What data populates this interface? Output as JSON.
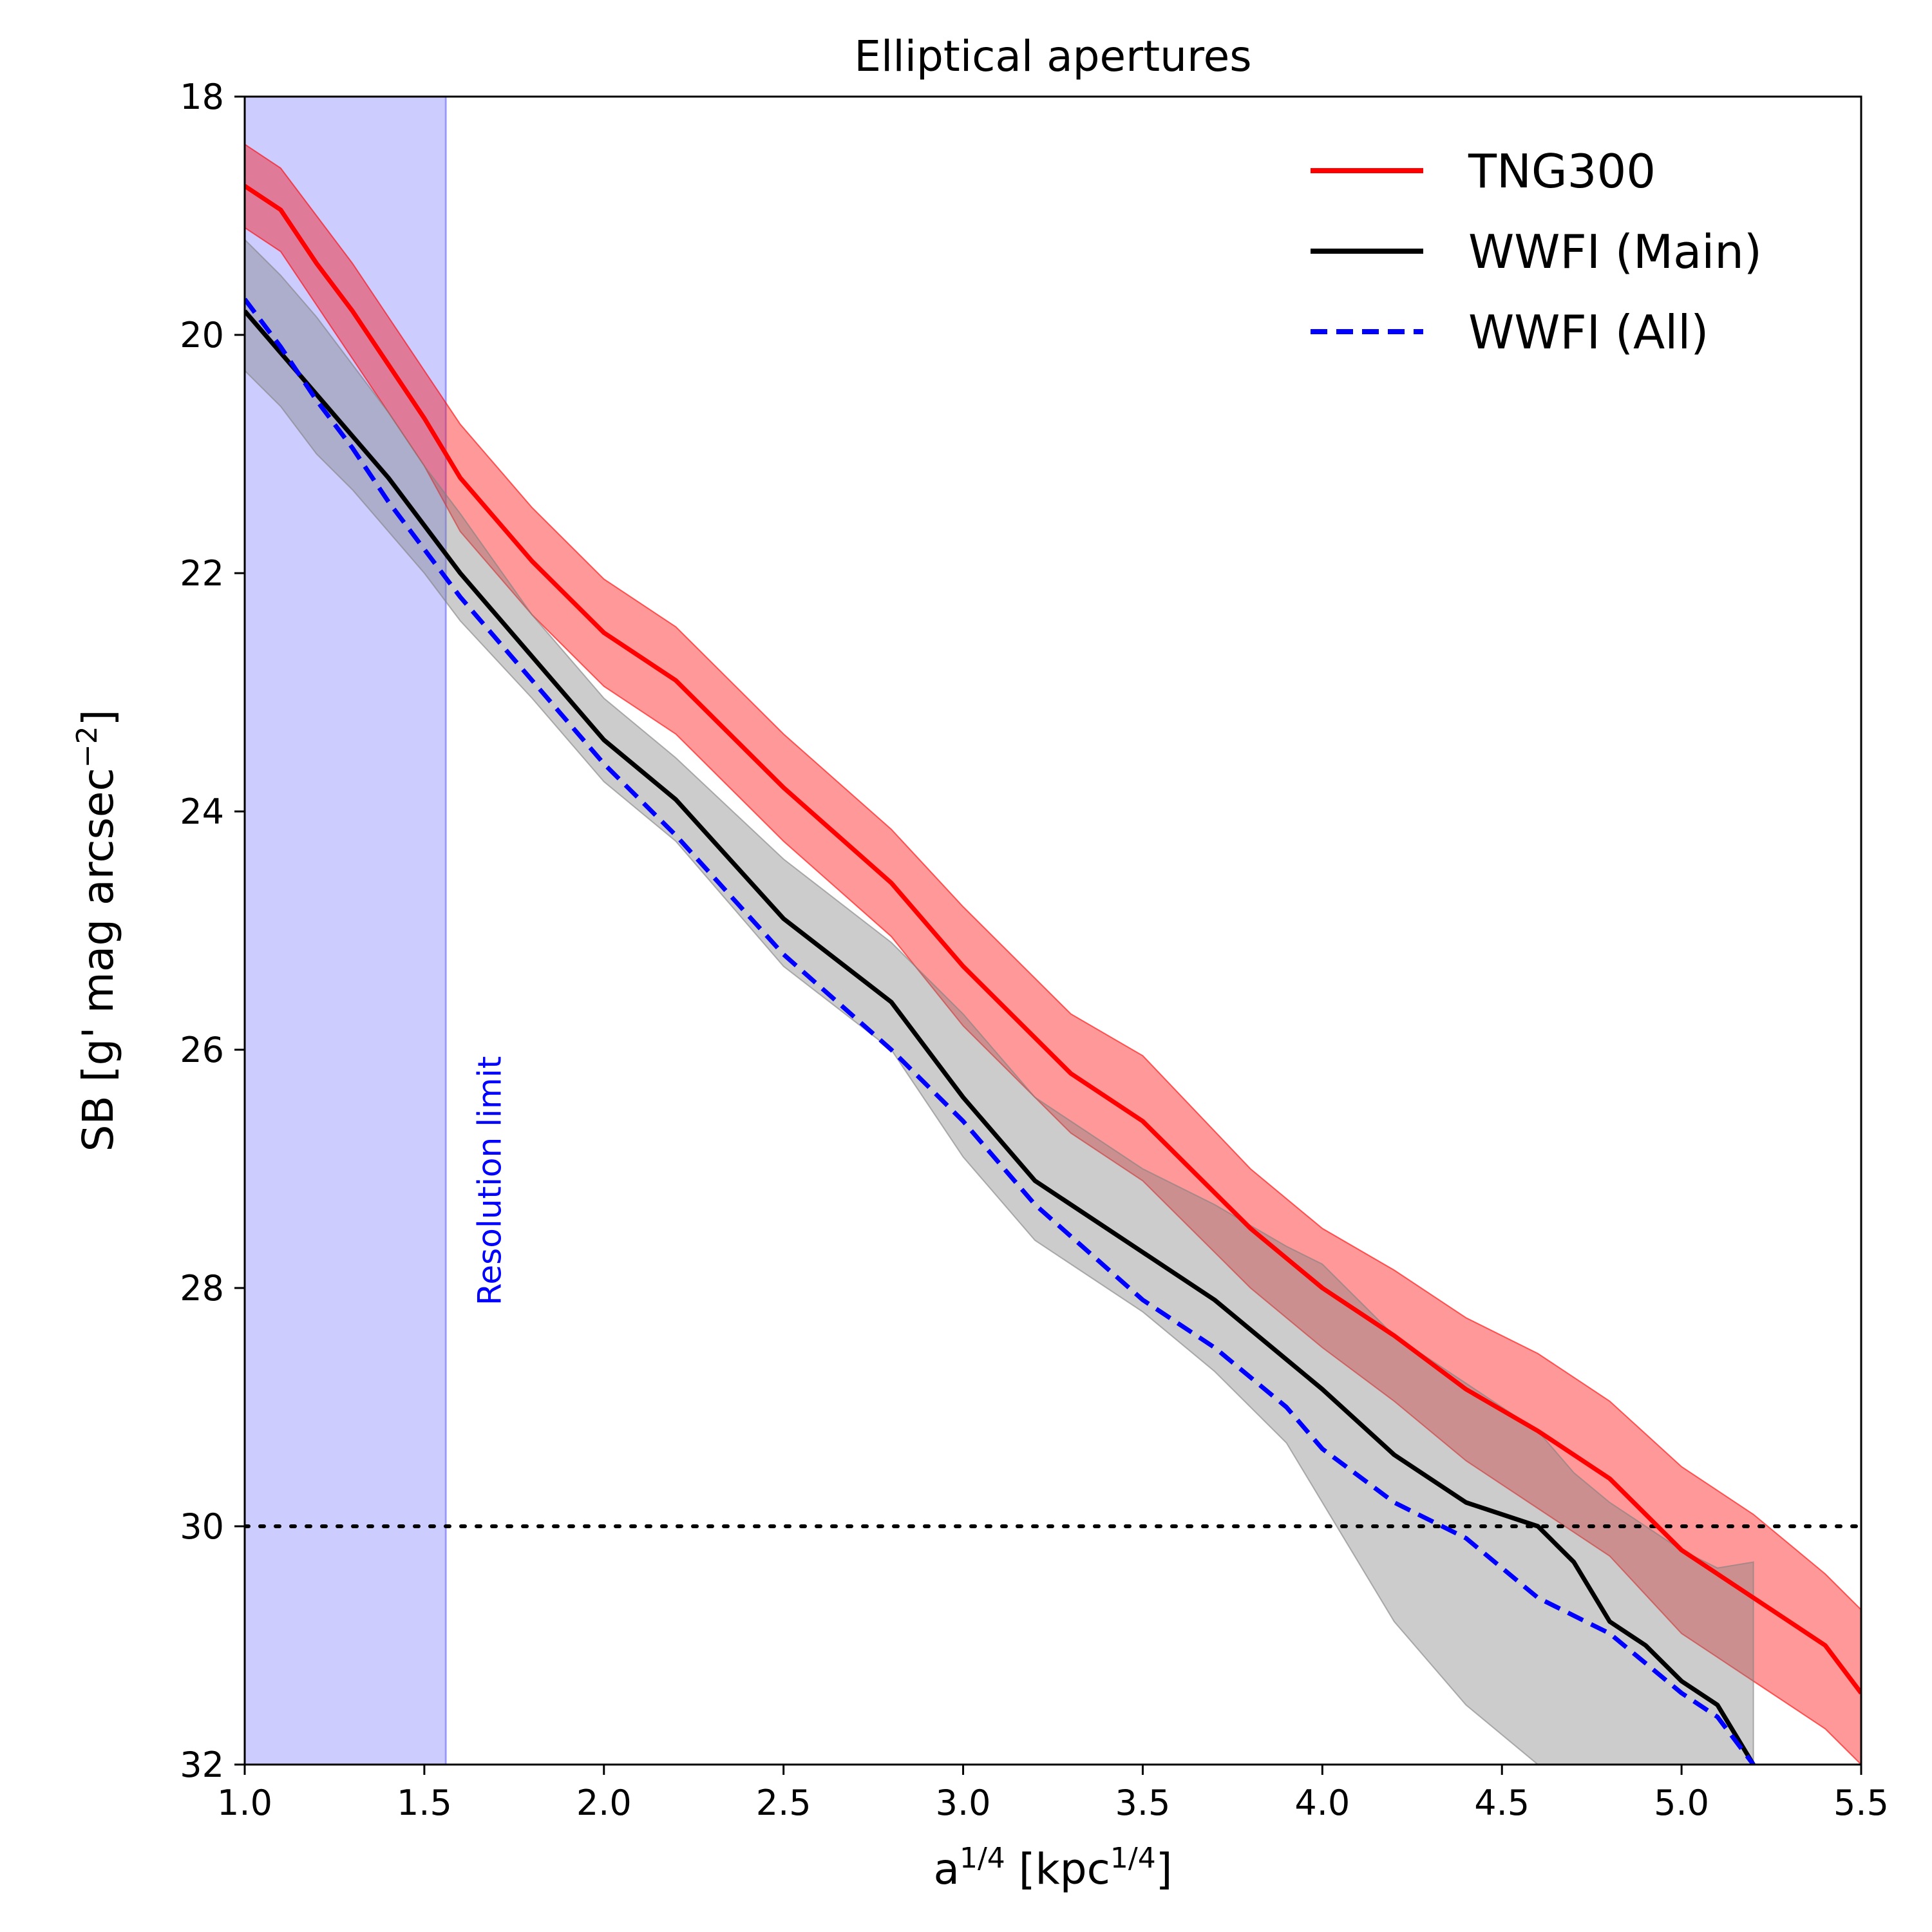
{
  "chart_data": {
    "type": "line",
    "title": "Elliptical apertures",
    "xlabel": "a<sup>1/4</sup> [kpc<sup>1/4</sup>]",
    "ylabel": "SB [g' mag arcsec<sup>−2</sup>]",
    "xlim": [
      1.0,
      5.5
    ],
    "ylim": [
      18,
      32
    ],
    "y_inverted": true,
    "grid": false,
    "legend_position": "top-right",
    "xticks": [
      "1.0",
      "1.5",
      "2.0",
      "2.5",
      "3.0",
      "3.5",
      "4.0",
      "4.5",
      "5.0",
      "5.5"
    ],
    "xtick_values": [
      1.0,
      1.5,
      2.0,
      2.5,
      3.0,
      3.5,
      4.0,
      4.5,
      5.0,
      5.5
    ],
    "yticks": [
      "18",
      "20",
      "22",
      "24",
      "26",
      "28",
      "30",
      "32"
    ],
    "ytick_values": [
      18,
      20,
      22,
      24,
      26,
      28,
      30,
      32
    ],
    "resolution_limit": {
      "label": "Resolution limit",
      "x_start": 1.0,
      "x_end": 1.56,
      "color": "#0000ff"
    },
    "reference_line": {
      "y": 30,
      "style": "dotted",
      "color": "#000000"
    },
    "series": [
      {
        "name": "TNG300",
        "color": "#ff0000",
        "style": "solid",
        "x": [
          1.0,
          1.1,
          1.2,
          1.3,
          1.4,
          1.5,
          1.6,
          1.8,
          2.0,
          2.2,
          2.5,
          2.8,
          3.0,
          3.3,
          3.5,
          3.8,
          4.0,
          4.2,
          4.4,
          4.6,
          4.8,
          5.0,
          5.2,
          5.4,
          5.5
        ],
        "y": [
          18.75,
          18.95,
          19.4,
          19.8,
          20.25,
          20.7,
          21.2,
          21.9,
          22.5,
          22.9,
          23.8,
          24.6,
          25.3,
          26.2,
          26.6,
          27.5,
          28.0,
          28.4,
          28.85,
          29.2,
          29.6,
          30.2,
          30.6,
          31.0,
          31.4
        ],
        "band_lower": [
          18.4,
          18.6,
          19.0,
          19.4,
          19.85,
          20.3,
          20.75,
          21.45,
          22.05,
          22.45,
          23.35,
          24.15,
          24.8,
          25.7,
          26.05,
          27.0,
          27.5,
          27.85,
          28.25,
          28.55,
          28.95,
          29.5,
          29.9,
          30.4,
          30.7
        ],
        "band_upper": [
          19.1,
          19.3,
          19.75,
          20.2,
          20.65,
          21.1,
          21.65,
          22.35,
          22.95,
          23.35,
          24.25,
          25.05,
          25.8,
          26.7,
          27.1,
          28.0,
          28.5,
          28.95,
          29.45,
          29.85,
          30.25,
          30.9,
          31.3,
          31.7,
          32.0
        ]
      },
      {
        "name": "WWFI (Main)",
        "color": "#000000",
        "style": "solid",
        "x": [
          1.0,
          1.1,
          1.2,
          1.3,
          1.4,
          1.5,
          1.6,
          1.8,
          2.0,
          2.2,
          2.5,
          2.8,
          3.0,
          3.2,
          3.5,
          3.7,
          3.9,
          4.0,
          4.2,
          4.4,
          4.6,
          4.7,
          4.8,
          4.9,
          5.0,
          5.1,
          5.2
        ],
        "y": [
          19.8,
          20.15,
          20.5,
          20.85,
          21.2,
          21.6,
          22.0,
          22.7,
          23.4,
          23.9,
          24.9,
          25.6,
          26.4,
          27.1,
          27.7,
          28.1,
          28.6,
          28.85,
          29.4,
          29.8,
          30.0,
          30.3,
          30.8,
          31.0,
          31.3,
          31.5,
          32.0
        ],
        "band_lower": [
          19.2,
          19.5,
          19.85,
          20.25,
          20.65,
          21.1,
          21.5,
          22.35,
          23.05,
          23.55,
          24.4,
          25.1,
          25.7,
          26.4,
          27.0,
          27.3,
          27.65,
          27.8,
          28.4,
          28.8,
          29.2,
          29.55,
          29.8,
          30.0,
          30.2,
          30.35,
          30.3
        ],
        "band_upper": [
          20.3,
          20.6,
          21.0,
          21.3,
          21.65,
          22.0,
          22.4,
          23.05,
          23.75,
          24.25,
          25.3,
          26.0,
          26.9,
          27.6,
          28.2,
          28.7,
          29.3,
          29.8,
          30.8,
          31.5,
          32.0,
          32.0,
          32.0,
          32.0,
          32.0,
          32.0,
          32.0
        ]
      },
      {
        "name": "WWFI (All)",
        "color": "#0000ff",
        "style": "dashed",
        "x": [
          1.0,
          1.1,
          1.2,
          1.3,
          1.4,
          1.5,
          1.6,
          1.8,
          2.0,
          2.2,
          2.5,
          2.8,
          3.0,
          3.2,
          3.5,
          3.7,
          3.9,
          4.0,
          4.2,
          4.4,
          4.6,
          4.8,
          5.0,
          5.1,
          5.2
        ],
        "y": [
          19.7,
          20.1,
          20.55,
          20.95,
          21.4,
          21.8,
          22.2,
          22.9,
          23.6,
          24.2,
          25.2,
          26.0,
          26.6,
          27.3,
          28.1,
          28.5,
          29.0,
          29.35,
          29.8,
          30.1,
          30.6,
          30.9,
          31.4,
          31.6,
          32.0
        ]
      }
    ]
  }
}
